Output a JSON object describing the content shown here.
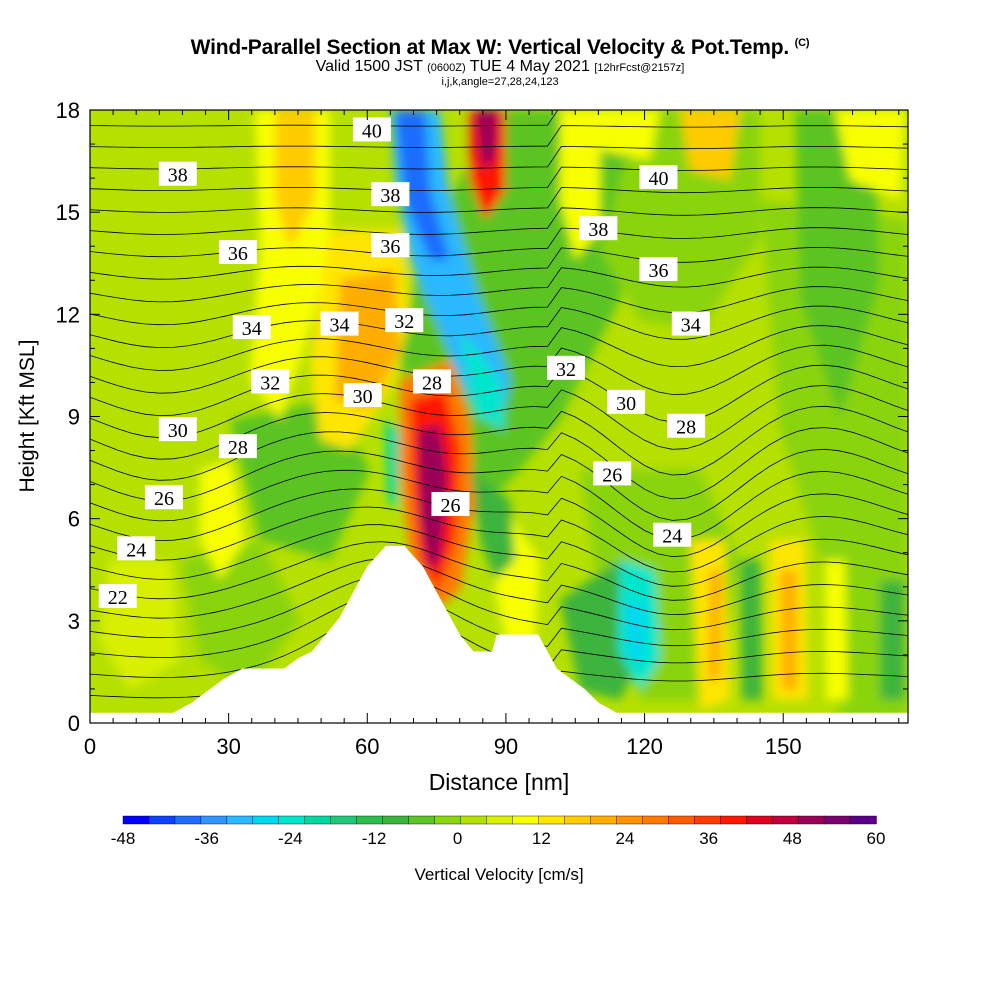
{
  "title": {
    "main": "Wind-Parallel Section at Max W: Vertical Velocity & Pot.Temp.",
    "main_suffix": "(C)",
    "line2_a": "Valid 1500 JST",
    "line2_b": "(0600Z)",
    "line2_c": "TUE 4 May 2021",
    "line2_d": "[12hrFcst@2157z]",
    "line3": "i,j,k,angle=27,28,24,123"
  },
  "chart_data": {
    "type": "heatmap",
    "xlabel": "Distance [nm]",
    "ylabel": "Height [Kft MSL]",
    "xlim": [
      0,
      177
    ],
    "ylim": [
      0,
      18
    ],
    "x_ticks": [
      "0",
      "30",
      "60",
      "90",
      "120",
      "150"
    ],
    "x_tick_values": [
      0,
      30,
      60,
      90,
      120,
      150
    ],
    "y_ticks": [
      "0",
      "3",
      "6",
      "9",
      "12",
      "15",
      "18"
    ],
    "y_tick_values": [
      0,
      3,
      6,
      9,
      12,
      15,
      18
    ],
    "colorbar": {
      "label": "Vertical Velocity [cm/s]",
      "tick_labels": [
        "-48",
        "-36",
        "-24",
        "-12",
        "0",
        "12",
        "24",
        "36",
        "48",
        "60"
      ],
      "min": -48,
      "max": 60,
      "step": 4,
      "colors": [
        "#0000ff",
        "#0d40ff",
        "#1f6cff",
        "#3195ff",
        "#2ab8ff",
        "#00d8f0",
        "#00e6cc",
        "#00d8a0",
        "#1ec878",
        "#2cbe4c",
        "#3cb43c",
        "#5cc424",
        "#8ad410",
        "#b6e000",
        "#d8f000",
        "#f8ff00",
        "#ffe600",
        "#ffcc00",
        "#ffae00",
        "#ff9300",
        "#ff7a00",
        "#ff5c00",
        "#ff3c00",
        "#ff1800",
        "#e00020",
        "#c0003c",
        "#9a0058",
        "#7a0070",
        "#5a0088"
      ]
    },
    "theta_contour_labels": [
      {
        "text": "40",
        "x": 61,
        "y": 17.4
      },
      {
        "text": "38",
        "x": 19,
        "y": 16.1
      },
      {
        "text": "38",
        "x": 65,
        "y": 15.5
      },
      {
        "text": "40",
        "x": 123,
        "y": 16.0
      },
      {
        "text": "36",
        "x": 32,
        "y": 13.8
      },
      {
        "text": "36",
        "x": 65,
        "y": 14.0
      },
      {
        "text": "38",
        "x": 110,
        "y": 14.5
      },
      {
        "text": "36",
        "x": 123,
        "y": 13.3
      },
      {
        "text": "34",
        "x": 35,
        "y": 11.6
      },
      {
        "text": "34",
        "x": 54,
        "y": 11.7
      },
      {
        "text": "32",
        "x": 68,
        "y": 11.8
      },
      {
        "text": "34",
        "x": 130,
        "y": 11.7
      },
      {
        "text": "32",
        "x": 39,
        "y": 10.0
      },
      {
        "text": "30",
        "x": 59,
        "y": 9.6
      },
      {
        "text": "28",
        "x": 74,
        "y": 10.0
      },
      {
        "text": "32",
        "x": 103,
        "y": 10.4
      },
      {
        "text": "30",
        "x": 116,
        "y": 9.4
      },
      {
        "text": "30",
        "x": 19,
        "y": 8.6
      },
      {
        "text": "28",
        "x": 32,
        "y": 8.1
      },
      {
        "text": "28",
        "x": 129,
        "y": 8.7
      },
      {
        "text": "26",
        "x": 16,
        "y": 6.6
      },
      {
        "text": "26",
        "x": 78,
        "y": 6.4
      },
      {
        "text": "26",
        "x": 113,
        "y": 7.3
      },
      {
        "text": "24",
        "x": 10,
        "y": 5.1
      },
      {
        "text": "24",
        "x": 126,
        "y": 5.5
      },
      {
        "text": "22",
        "x": 6,
        "y": 3.7
      }
    ],
    "terrain_profile_kft": [
      [
        0,
        0.3
      ],
      [
        18,
        0.3
      ],
      [
        22,
        0.6
      ],
      [
        26,
        1.0
      ],
      [
        29,
        1.3
      ],
      [
        33,
        1.6
      ],
      [
        42,
        1.6
      ],
      [
        45,
        1.9
      ],
      [
        48,
        2.1
      ],
      [
        51,
        2.6
      ],
      [
        54,
        3.1
      ],
      [
        56,
        3.6
      ],
      [
        58,
        4.1
      ],
      [
        60,
        4.6
      ],
      [
        62,
        4.9
      ],
      [
        64,
        5.2
      ],
      [
        68,
        5.2
      ],
      [
        70,
        4.9
      ],
      [
        72,
        4.6
      ],
      [
        74,
        4.1
      ],
      [
        76,
        3.6
      ],
      [
        78,
        3.1
      ],
      [
        80,
        2.6
      ],
      [
        83,
        2.1
      ],
      [
        87,
        2.1
      ],
      [
        88,
        2.6
      ],
      [
        97,
        2.6
      ],
      [
        99,
        2.1
      ],
      [
        101,
        1.6
      ],
      [
        104,
        1.3
      ],
      [
        107,
        1.0
      ],
      [
        110,
        0.6
      ],
      [
        114,
        0.3
      ],
      [
        177,
        0.3
      ]
    ]
  }
}
